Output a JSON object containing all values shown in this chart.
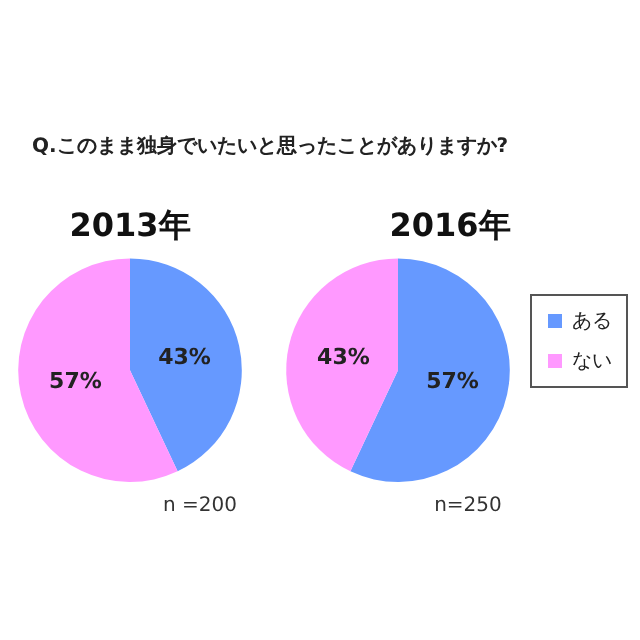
{
  "chart_data": [
    {
      "type": "pie",
      "title": "2013年",
      "categories": [
        null,
        null
      ],
      "values": [
        43,
        57
      ],
      "colors": [
        "#6699ff",
        "#ff99ff"
      ],
      "value_labels": [
        "43%",
        "57%"
      ],
      "legend": false,
      "annotations": [
        "Q.このまま独身でいたいと思ったことがありますか?",
        "n =200"
      ]
    },
    {
      "type": "pie",
      "title": "2016年",
      "categories": [
        "ある",
        "ない"
      ],
      "values": [
        57,
        43
      ],
      "colors": [
        "#6699ff",
        "#ff99ff"
      ],
      "value_labels": [
        "57%",
        "43%"
      ],
      "legend": "right",
      "annotations": [
        "n=250"
      ]
    }
  ]
}
